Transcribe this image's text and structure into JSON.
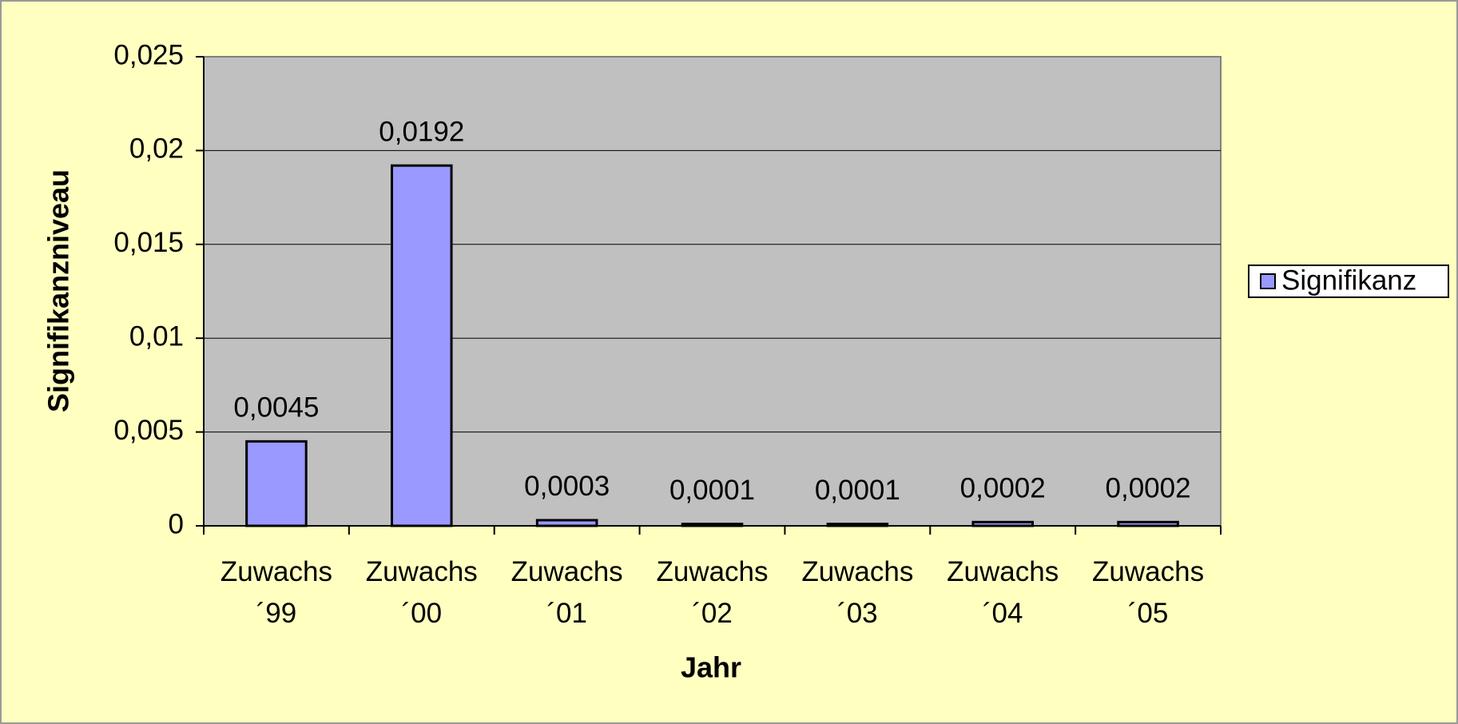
{
  "chart_data": {
    "type": "bar",
    "x_label": "Jahr",
    "y_label": "Signifikanzniveau",
    "categories": [
      "Zuwachs ´99",
      "Zuwachs ´00",
      "Zuwachs ´01",
      "Zuwachs ´02",
      "Zuwachs ´03",
      "Zuwachs ´04",
      "Zuwachs ´05"
    ],
    "series": [
      {
        "name": "Signifikanz",
        "color": "#9999ff",
        "values": [
          0.0045,
          0.0192,
          0.0003,
          0.0001,
          0.0001,
          0.0002,
          0.0002
        ],
        "value_labels": [
          "0,0045",
          "0,0192",
          "0,0003",
          "0,0001",
          "0,0001",
          "0,0002",
          "0,0002"
        ]
      }
    ],
    "ylim": [
      0,
      0.025
    ],
    "yticks": [
      0,
      {
        "value": 0.005,
        "label": "0,005"
      },
      {
        "value": 0.01,
        "label": "0,01"
      },
      {
        "value": 0.015,
        "label": "0,015"
      },
      {
        "value": 0.02,
        "label": "0,02"
      },
      {
        "value": 0.025,
        "label": "0,025"
      }
    ],
    "grid": true,
    "legend": "right"
  }
}
